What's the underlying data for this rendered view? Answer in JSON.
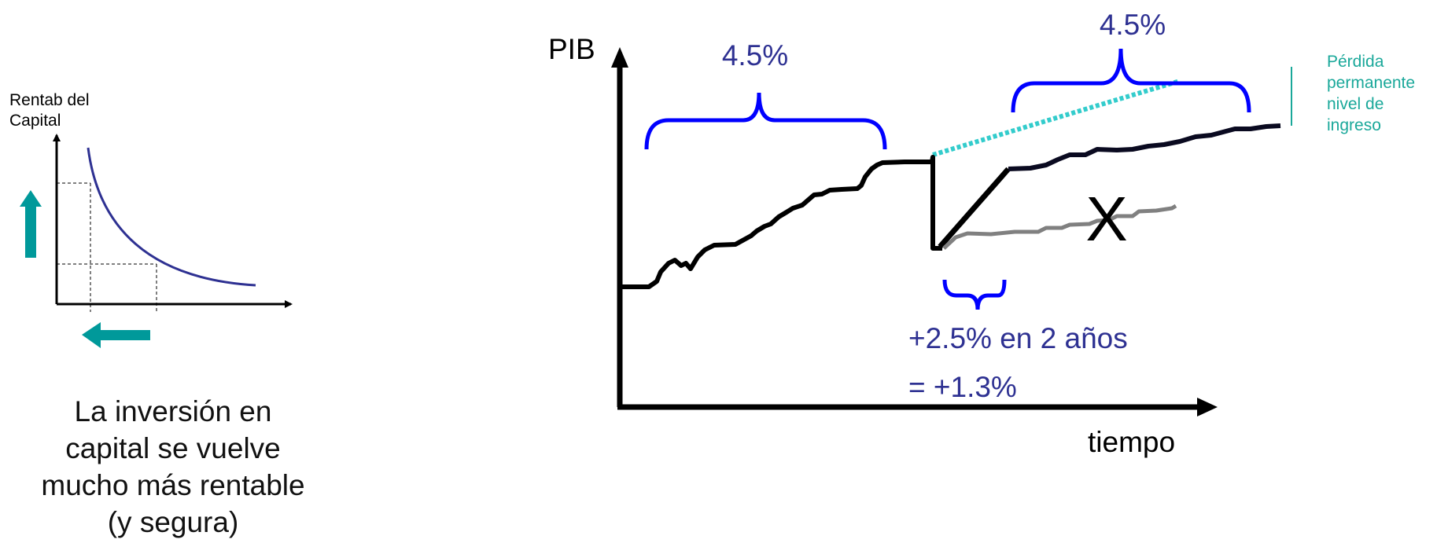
{
  "left_panel": {
    "ylabel_line1": "Rentab del",
    "ylabel_line2": "Capital",
    "caption_line1": "La inversión en",
    "caption_line2": "capital se vuelve",
    "caption_line3": "mucho más rentable",
    "caption_line4": "(y segura)",
    "arrow_color": "#00999a",
    "curve_color": "#2e3192"
  },
  "main_chart": {
    "ylabel": "PIB",
    "xlabel": "tiempo",
    "growth_before": "4.5%",
    "growth_after": "4.5%",
    "recovery_line1": "+2.5% en 2 años",
    "recovery_line2": "= +1.3%",
    "cross_mark": "X",
    "loss_line1": "Pérdida",
    "loss_line2": "permanente",
    "loss_line3": "nivel de",
    "loss_line4": "ingreso",
    "label_color": "#2e3192",
    "brace_color": "#0000ff",
    "trend_color": "#33cccc",
    "loss_color": "#1aa89a",
    "path_color": "#000000",
    "alt_path_color": "#808080"
  }
}
